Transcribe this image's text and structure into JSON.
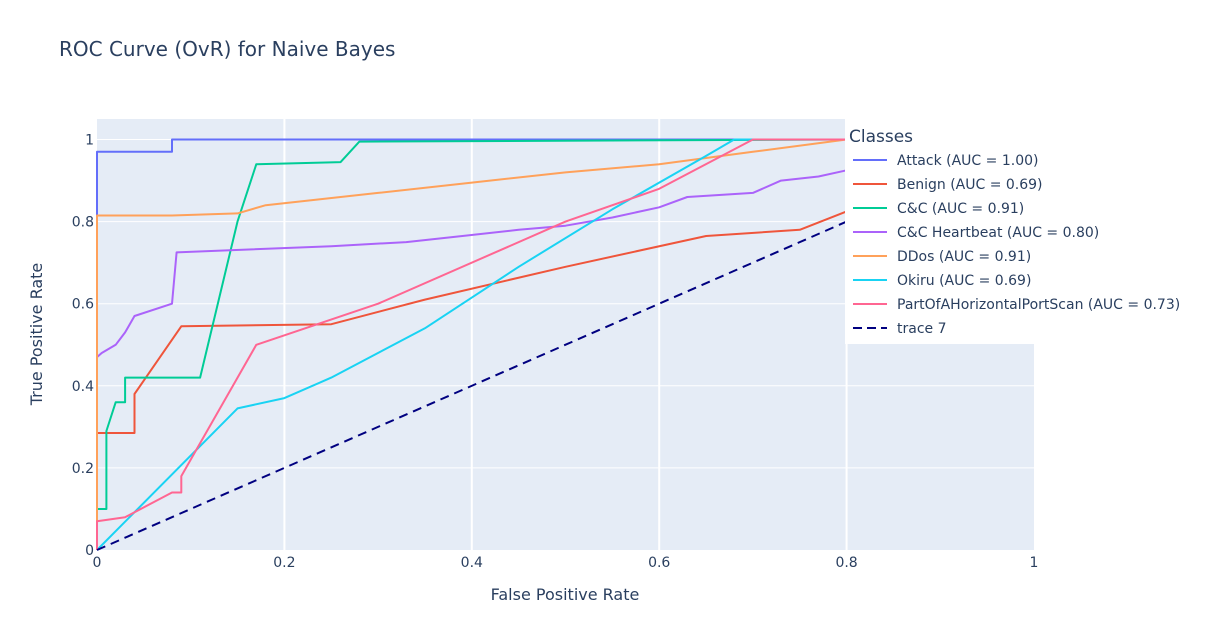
{
  "chart_data": {
    "type": "line",
    "title": "ROC Curve (OvR) for Naive Bayes",
    "xlabel": "False Positive Rate",
    "ylabel": "True Positive Rate",
    "xlim": [
      0,
      1
    ],
    "ylim": [
      0,
      1.05
    ],
    "xticks": [
      "0",
      "0.2",
      "0.4",
      "0.6",
      "0.8",
      "1"
    ],
    "yticks": [
      "0",
      "0.2",
      "0.4",
      "0.6",
      "0.8",
      "1"
    ],
    "grid": true,
    "legend_title": "Classes",
    "legend_position": "right",
    "series": [
      {
        "name": "Attack (AUC = 1.00)",
        "color": "#636efa",
        "dash": false,
        "x": [
          0,
          0,
          0.08,
          0.08,
          1
        ],
        "y": [
          0,
          0.97,
          0.97,
          1.0,
          1.0
        ]
      },
      {
        "name": "Benign (AUC = 0.69)",
        "color": "#ef553b",
        "dash": false,
        "x": [
          0,
          0,
          0.04,
          0.04,
          0.09,
          0.25,
          0.35,
          0.5,
          0.65,
          0.75,
          0.8
        ],
        "y": [
          0,
          0.285,
          0.285,
          0.38,
          0.545,
          0.55,
          0.61,
          0.69,
          0.765,
          0.78,
          0.825
        ]
      },
      {
        "name": "C&C (AUC = 0.91)",
        "color": "#00cc96",
        "dash": false,
        "x": [
          0,
          0,
          0.01,
          0.01,
          0.02,
          0.03,
          0.03,
          0.11,
          0.15,
          0.17,
          0.26,
          0.28,
          0.8
        ],
        "y": [
          0,
          0.1,
          0.1,
          0.29,
          0.36,
          0.36,
          0.42,
          0.42,
          0.8,
          0.94,
          0.945,
          0.995,
          1.0
        ]
      },
      {
        "name": "C&C Heartbeat (AUC = 0.80)",
        "color": "#ab63fa",
        "dash": false,
        "x": [
          0,
          0,
          0.005,
          0.02,
          0.03,
          0.04,
          0.08,
          0.085,
          0.25,
          0.33,
          0.39,
          0.45,
          0.5,
          0.55,
          0.6,
          0.63,
          0.7,
          0.73,
          0.77,
          0.8
        ],
        "y": [
          0,
          0.47,
          0.48,
          0.5,
          0.53,
          0.57,
          0.6,
          0.725,
          0.74,
          0.75,
          0.765,
          0.78,
          0.79,
          0.81,
          0.835,
          0.86,
          0.87,
          0.9,
          0.91,
          0.925
        ]
      },
      {
        "name": "DDos (AUC = 0.91)",
        "color": "#ffa15a",
        "dash": false,
        "x": [
          0,
          0,
          0.08,
          0.15,
          0.18,
          0.3,
          0.4,
          0.5,
          0.6,
          0.7,
          0.8
        ],
        "y": [
          0,
          0.815,
          0.815,
          0.82,
          0.84,
          0.87,
          0.895,
          0.92,
          0.94,
          0.97,
          1.0
        ]
      },
      {
        "name": "Okiru (AUC = 0.69)",
        "color": "#19d3f3",
        "dash": false,
        "x": [
          0,
          0.15,
          0.2,
          0.25,
          0.35,
          0.45,
          0.55,
          0.65,
          0.68,
          0.8
        ],
        "y": [
          0,
          0.345,
          0.37,
          0.42,
          0.54,
          0.69,
          0.83,
          0.96,
          1.0,
          1.0
        ]
      },
      {
        "name": "PartOfAHorizontalPortScan (AUC = 0.73)",
        "color": "#ff6692",
        "dash": false,
        "x": [
          0,
          0,
          0.03,
          0.08,
          0.09,
          0.09,
          0.17,
          0.3,
          0.5,
          0.6,
          0.7,
          0.8
        ],
        "y": [
          0,
          0.07,
          0.08,
          0.14,
          0.14,
          0.18,
          0.5,
          0.6,
          0.8,
          0.88,
          1.0,
          1.0
        ]
      },
      {
        "name": "trace 7",
        "color": "#000080",
        "dash": true,
        "x": [
          0,
          0.8
        ],
        "y": [
          0,
          0.8
        ]
      }
    ]
  }
}
